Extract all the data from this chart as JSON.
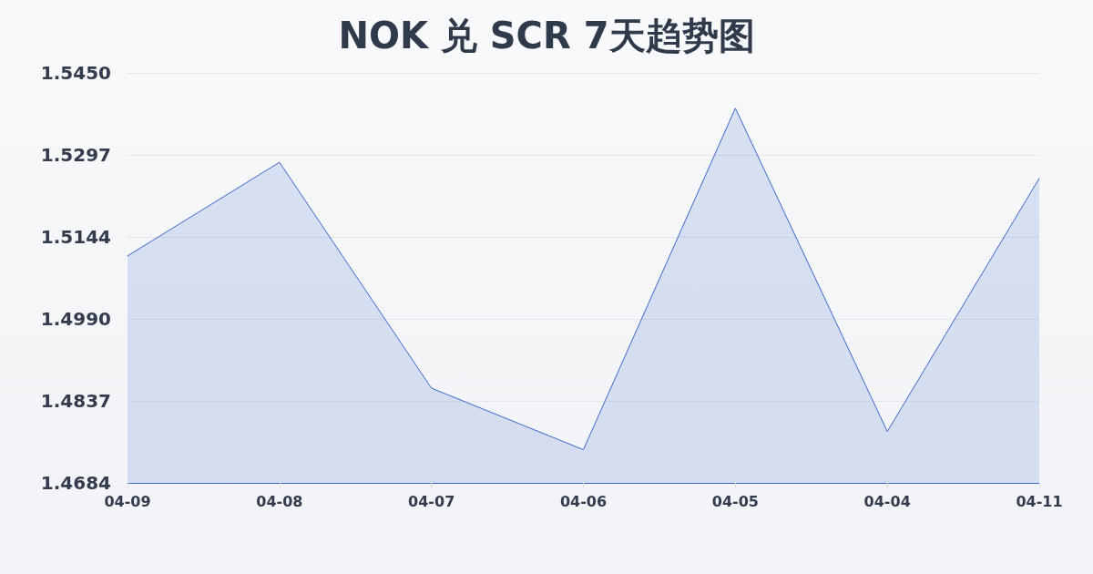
{
  "chart_data": {
    "type": "area",
    "title": "NOK 兑 SCR 7天趋势图",
    "categories": [
      "04-09",
      "04-08",
      "04-07",
      "04-06",
      "04-05",
      "04-04",
      "04-11"
    ],
    "values": [
      1.5108,
      1.5283,
      1.4861,
      1.4746,
      1.5384,
      1.478,
      1.5253
    ],
    "color": "#3a66cc",
    "ylim": [
      1.4684,
      1.545
    ],
    "yticks": [
      {
        "value": 1.4684,
        "label": "1.4684"
      },
      1.4837,
      {
        "value": 1.499,
        "label": "1.4990"
      },
      1.5144,
      1.5297,
      {
        "value": 1.545,
        "label": "1.5450"
      }
    ],
    "grid": "y",
    "marker": "none",
    "line_style": "solid"
  }
}
